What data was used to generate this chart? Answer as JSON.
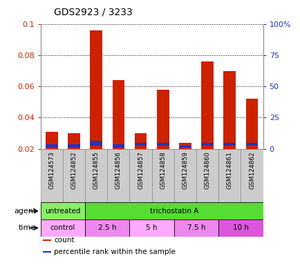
{
  "title": "GDS2923 / 3233",
  "samples": [
    "GSM124573",
    "GSM124852",
    "GSM124855",
    "GSM124856",
    "GSM124857",
    "GSM124858",
    "GSM124859",
    "GSM124860",
    "GSM124861",
    "GSM124862"
  ],
  "red_values": [
    0.031,
    0.03,
    0.096,
    0.064,
    0.03,
    0.058,
    0.024,
    0.076,
    0.07,
    0.052
  ],
  "blue_heights": [
    0.002,
    0.002,
    0.003,
    0.002,
    0.002,
    0.002,
    0.001,
    0.002,
    0.002,
    0.002
  ],
  "blue_bottoms": [
    0.021,
    0.021,
    0.022,
    0.021,
    0.022,
    0.022,
    0.021,
    0.022,
    0.022,
    0.022
  ],
  "ylim_left": [
    0.02,
    0.1
  ],
  "yticks_left": [
    0.02,
    0.04,
    0.06,
    0.08,
    0.1
  ],
  "ytick_labels_left": [
    "0.02",
    "0.04",
    "0.06",
    "0.08",
    "0.1"
  ],
  "yticks_right_pct": [
    0,
    25,
    50,
    75,
    100
  ],
  "ytick_labels_right": [
    "0",
    "25",
    "50",
    "75",
    "100%"
  ],
  "bar_width": 0.55,
  "red_color": "#cc2200",
  "blue_color": "#2233bb",
  "agent_row_items": [
    {
      "label": "untreated",
      "span": [
        0,
        2
      ],
      "color": "#88ee66"
    },
    {
      "label": "trichostatin A",
      "span": [
        2,
        10
      ],
      "color": "#55dd33"
    }
  ],
  "time_row_items": [
    {
      "label": "control",
      "span": [
        0,
        2
      ],
      "color": "#ffaaff"
    },
    {
      "label": "2.5 h",
      "span": [
        2,
        4
      ],
      "color": "#ee88ee"
    },
    {
      "label": "5 h",
      "span": [
        4,
        6
      ],
      "color": "#ffaaff"
    },
    {
      "label": "7.5 h",
      "span": [
        6,
        8
      ],
      "color": "#ee88ee"
    },
    {
      "label": "10 h",
      "span": [
        8,
        10
      ],
      "color": "#dd55dd"
    }
  ],
  "legend_items": [
    {
      "label": "count",
      "color": "#cc2200"
    },
    {
      "label": "percentile rank within the sample",
      "color": "#2233bb"
    }
  ],
  "bg_color": "#ffffff",
  "tick_label_color_left": "#cc2200",
  "tick_label_color_right": "#2233bb",
  "xtick_bg_color": "#cccccc",
  "row_label_color": "#000000"
}
